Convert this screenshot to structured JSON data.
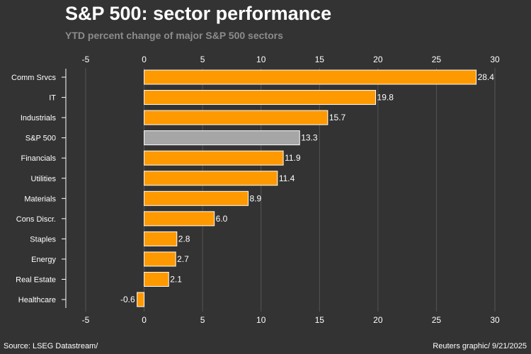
{
  "header": {
    "title": "S&P 500: sector performance",
    "subtitle": "YTD percent change of major S&P 500 sectors"
  },
  "footer": {
    "source": "Source: LSEG Datastream/",
    "credit": "Reuters graphic/ 9/21/2025"
  },
  "colors": {
    "background": "#333333",
    "bar": "#ff9900",
    "highlight_bar": "#a6a6a6",
    "bar_outline": "#ffffff",
    "gridline": "#555555"
  },
  "chart_data": {
    "type": "bar",
    "orientation": "horizontal",
    "title": "S&P 500: sector performance",
    "subtitle": "YTD percent change of major S&P 500 sectors",
    "xlabel": "",
    "ylabel": "",
    "xlim": [
      -5,
      30
    ],
    "xticks": [
      -5,
      0,
      5,
      10,
      15,
      20,
      25,
      30
    ],
    "tick_labels": [
      "-5",
      "0",
      "5",
      "10",
      "15",
      "20",
      "25",
      "30"
    ],
    "grid": true,
    "categories": [
      "Comm Srvcs",
      "IT",
      "Industrials",
      "S&P 500",
      "Financials",
      "Utilities",
      "Materials",
      "Cons Discr.",
      "Staples",
      "Energy",
      "Real Estate",
      "Healthcare"
    ],
    "values": [
      28.4,
      19.8,
      15.7,
      13.3,
      11.9,
      11.4,
      8.9,
      6.0,
      2.8,
      2.7,
      2.1,
      -0.6
    ],
    "value_labels": [
      "28.4",
      "19.8",
      "15.7",
      "13.3",
      "11.9",
      "11.4",
      "8.9",
      "6.0",
      "2.8",
      "2.7",
      "2.1",
      "-0.6"
    ],
    "highlight_category": "S&P 500"
  }
}
